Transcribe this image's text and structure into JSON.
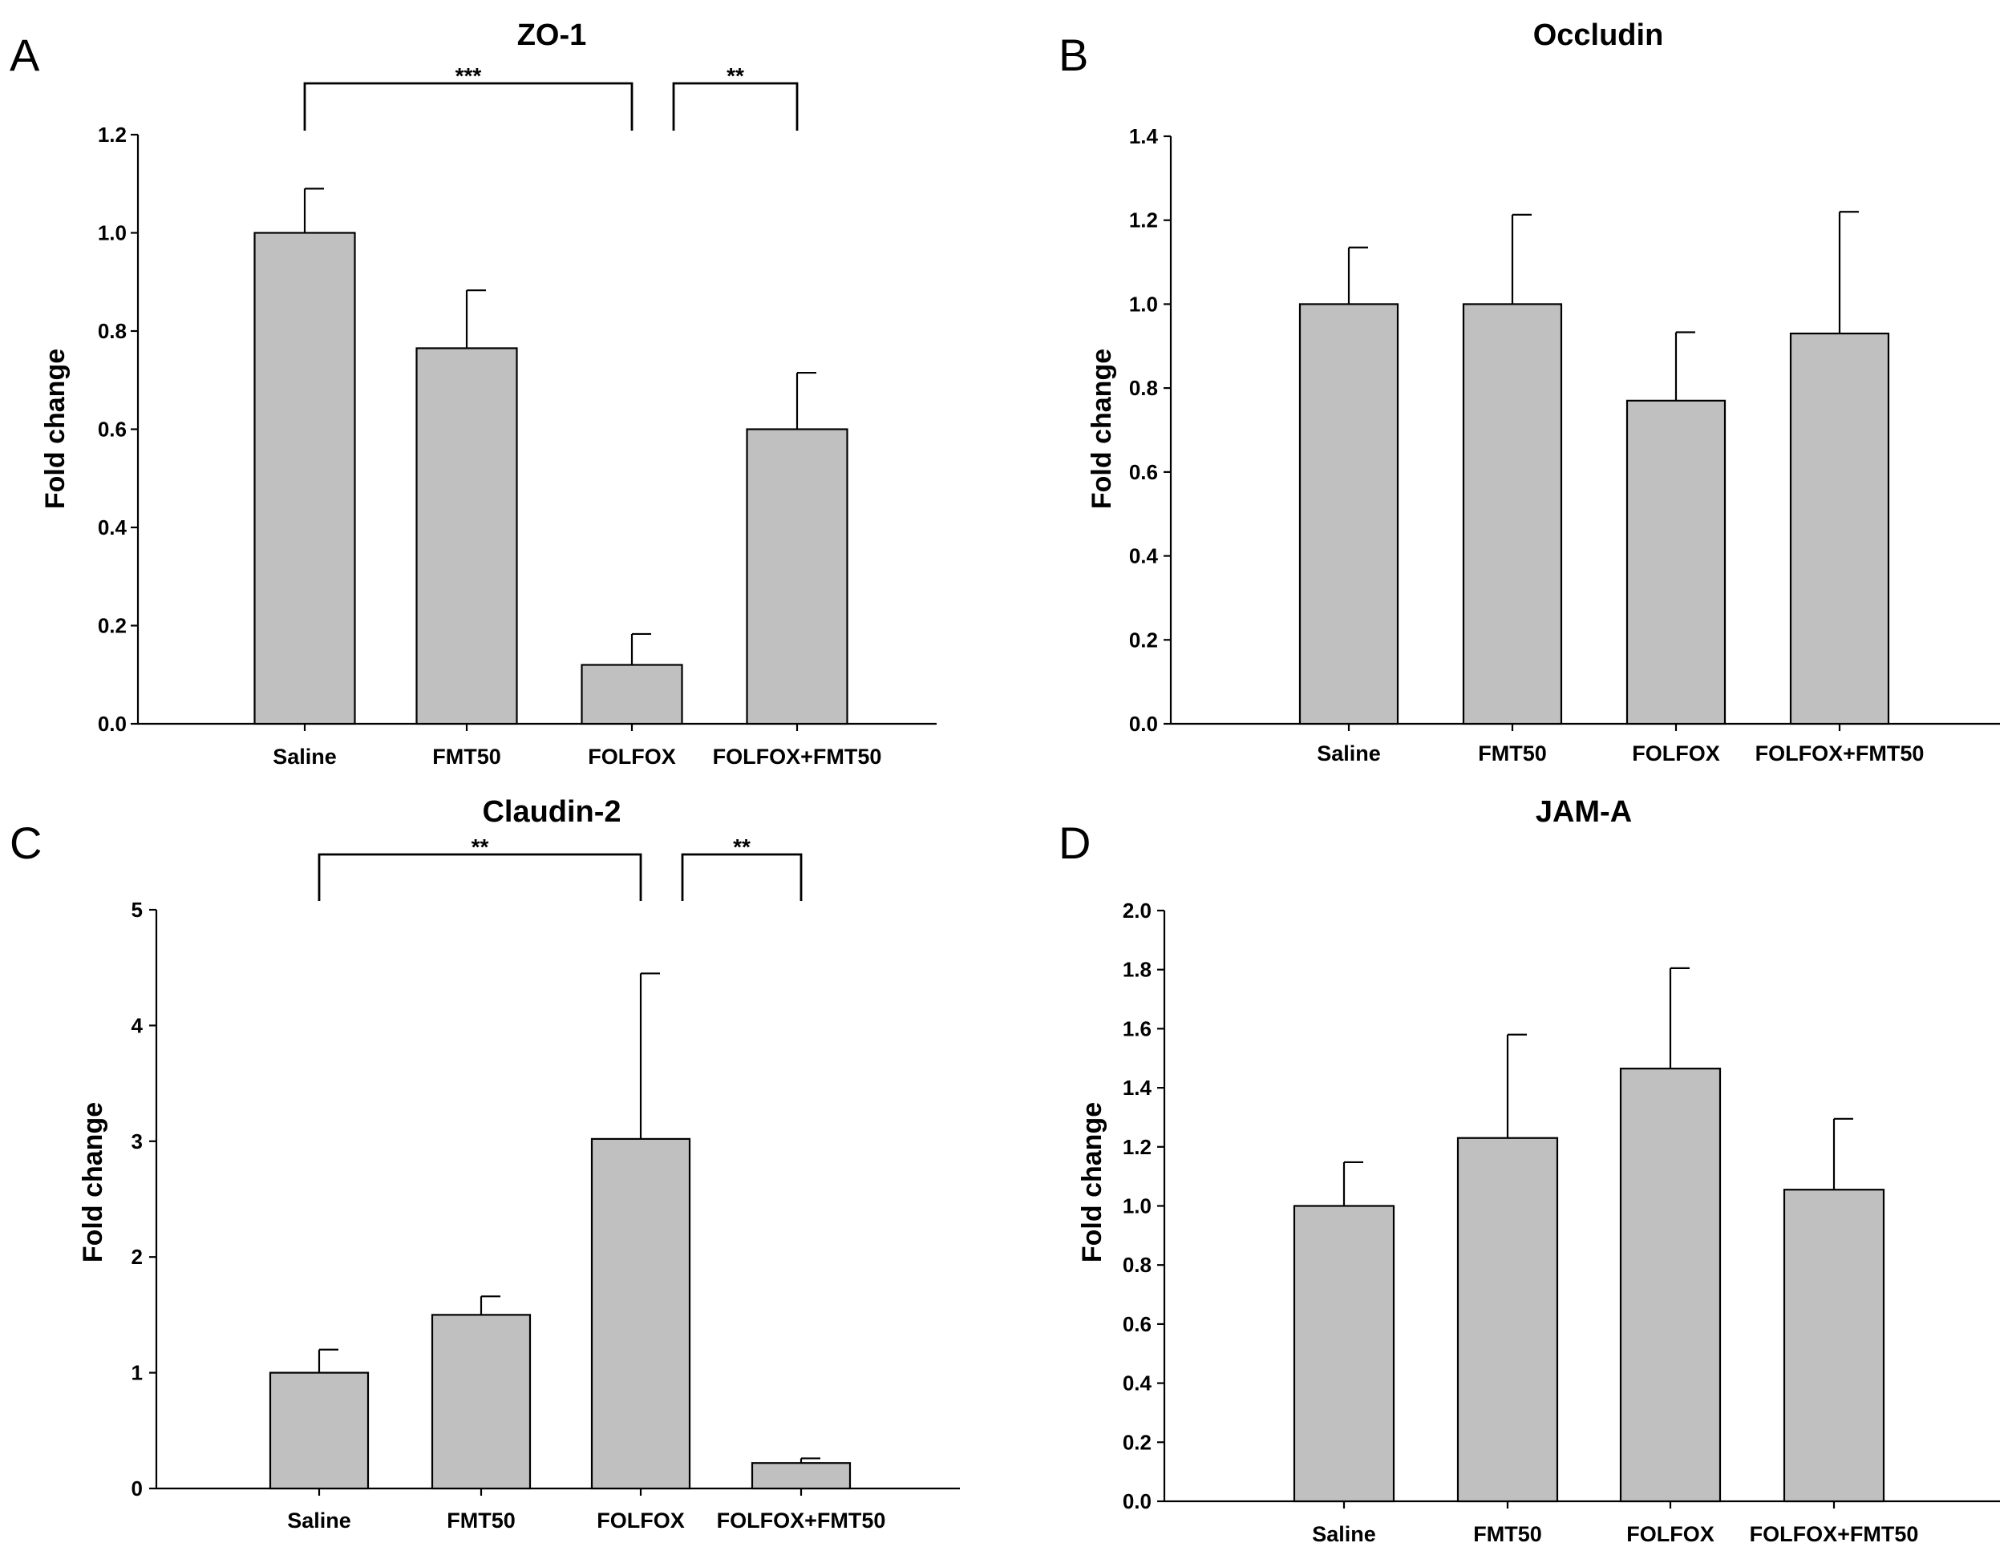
{
  "colors": {
    "bar_fill": "#c0c0c0",
    "stroke": "#000000",
    "background": "#ffffff"
  },
  "chart_data": [
    {
      "panel_label": "A",
      "type": "bar",
      "title": "ZO-1",
      "xlabel": "",
      "ylabel": "Fold change",
      "categories": [
        "Saline",
        "FMT50",
        "FOLFOX",
        "FOLFOX+FMT50"
      ],
      "values": [
        1.0,
        0.765,
        0.12,
        0.6
      ],
      "errors": [
        0.09,
        0.118,
        0.063,
        0.115
      ],
      "ylim": [
        0,
        1.2
      ],
      "yticks": [
        0,
        0.2,
        0.4,
        0.6,
        0.8,
        1.0,
        1.2
      ],
      "ytick_labels": [
        "0.0",
        "0.2",
        "0.4",
        "0.6",
        "0.8",
        "1.0",
        "1.2"
      ],
      "grid": false,
      "significance": [
        {
          "from": "Saline",
          "to": "FOLFOX",
          "label": "***"
        },
        {
          "from": "FOLFOX",
          "to": "FOLFOX+FMT50",
          "label": "**"
        }
      ]
    },
    {
      "panel_label": "B",
      "type": "bar",
      "title": "Occludin",
      "xlabel": "",
      "ylabel": "Fold change",
      "categories": [
        "Saline",
        "FMT50",
        "FOLFOX",
        "FOLFOX+FMT50"
      ],
      "values": [
        1.0,
        1.0,
        0.77,
        0.93
      ],
      "errors": [
        0.135,
        0.213,
        0.163,
        0.29
      ],
      "ylim": [
        0,
        1.4
      ],
      "yticks": [
        0,
        0.2,
        0.4,
        0.6,
        0.8,
        1.0,
        1.2,
        1.4
      ],
      "ytick_labels": [
        "0.0",
        "0.2",
        "0.4",
        "0.6",
        "0.8",
        "1.0",
        "1.2",
        "1.4"
      ],
      "grid": false,
      "significance": []
    },
    {
      "panel_label": "C",
      "type": "bar",
      "title": "Claudin-2",
      "xlabel": "",
      "ylabel": "Fold change",
      "categories": [
        "Saline",
        "FMT50",
        "FOLFOX",
        "FOLFOX+FMT50"
      ],
      "values": [
        1.0,
        1.5,
        3.02,
        0.22
      ],
      "errors": [
        0.2,
        0.16,
        1.43,
        0.04
      ],
      "ylim": [
        0,
        5
      ],
      "yticks": [
        0,
        1,
        2,
        3,
        4,
        5
      ],
      "ytick_labels": [
        "0",
        "1",
        "2",
        "3",
        "4",
        "5"
      ],
      "grid": false,
      "significance": [
        {
          "from": "Saline",
          "to": "FOLFOX",
          "label": "**"
        },
        {
          "from": "FOLFOX",
          "to": "FOLFOX+FMT50",
          "label": "**"
        }
      ]
    },
    {
      "panel_label": "D",
      "type": "bar",
      "title": "JAM-A",
      "xlabel": "",
      "ylabel": "Fold change",
      "categories": [
        "Saline",
        "FMT50",
        "FOLFOX",
        "FOLFOX+FMT50"
      ],
      "values": [
        1.0,
        1.23,
        1.465,
        1.055
      ],
      "errors": [
        0.148,
        0.35,
        0.34,
        0.24
      ],
      "ylim": [
        0,
        2.0
      ],
      "yticks": [
        0,
        0.2,
        0.4,
        0.6,
        0.8,
        1.0,
        1.2,
        1.4,
        1.6,
        1.8,
        2.0
      ],
      "ytick_labels": [
        "0.0",
        "0.2",
        "0.4",
        "0.6",
        "0.8",
        "1.0",
        "1.2",
        "1.4",
        "1.6",
        "1.8",
        "2.0"
      ],
      "grid": false,
      "significance": []
    }
  ]
}
